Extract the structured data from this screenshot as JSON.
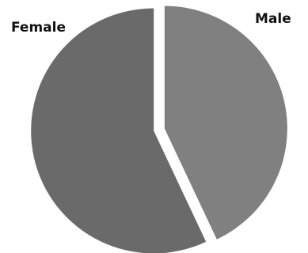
{
  "chart_data": {
    "type": "pie",
    "categories": [
      "Male",
      "Female"
    ],
    "values": [
      43,
      57
    ],
    "colors": {
      "Male": "#808080",
      "Female": "#6a6a6a"
    },
    "exploded": true,
    "legend": "none"
  }
}
